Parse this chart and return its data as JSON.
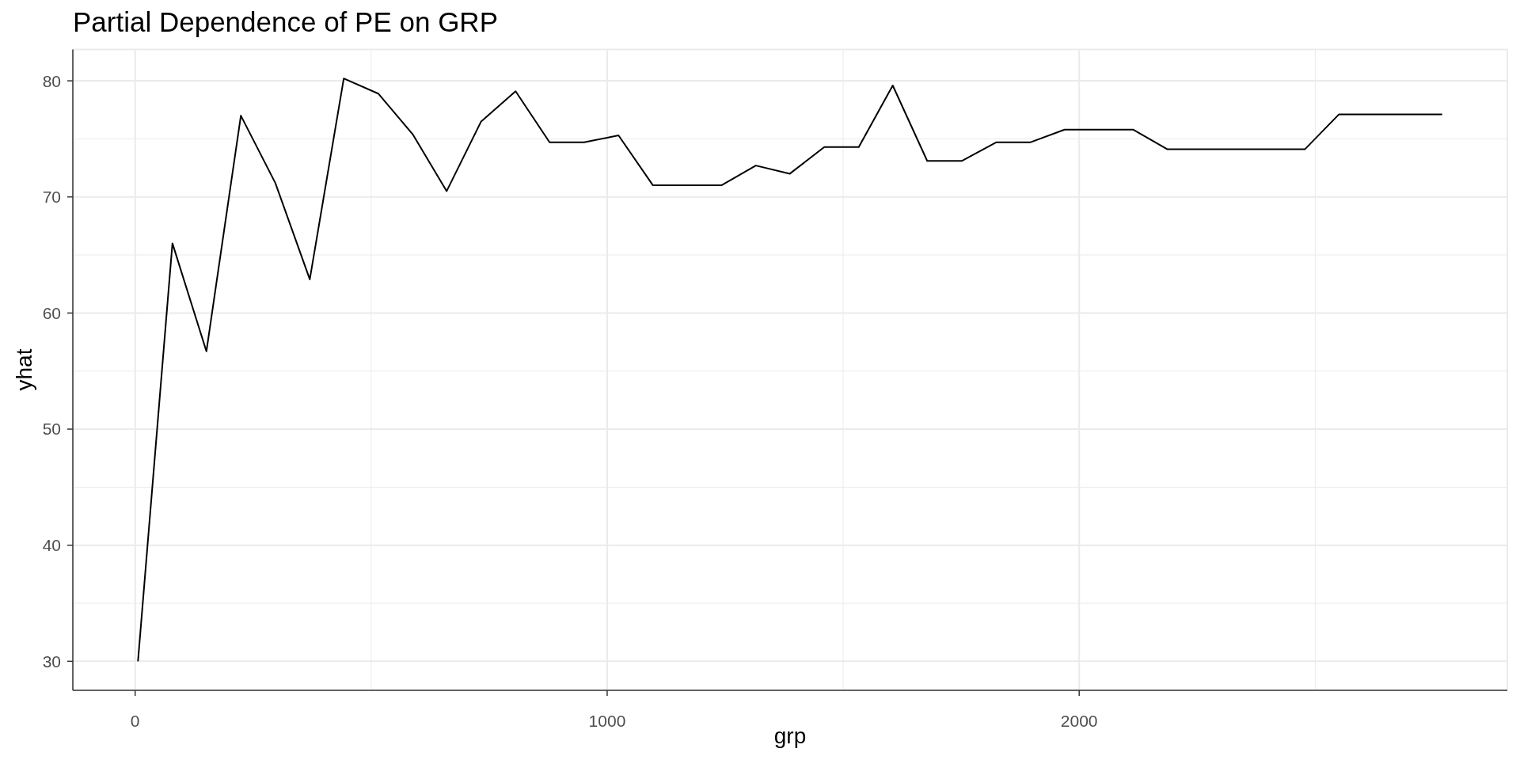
{
  "chart_data": {
    "type": "line",
    "title": "Partial Dependence of PE on GRP",
    "xlabel": "grp",
    "ylabel": "yhat",
    "x": [
      6,
      79,
      151,
      224,
      297,
      370,
      442,
      515,
      588,
      660,
      733,
      806,
      878,
      951,
      1024,
      1097,
      1169,
      1242,
      1315,
      1387,
      1460,
      1533,
      1605,
      1678,
      1751,
      1824,
      1896,
      1969,
      2042,
      2114,
      2187,
      2260,
      2332,
      2405,
      2478,
      2550,
      2623,
      2696,
      2769
    ],
    "values": [
      30.0,
      66.0,
      56.7,
      77.0,
      71.2,
      62.9,
      80.2,
      78.9,
      75.4,
      70.5,
      76.5,
      79.1,
      74.7,
      74.7,
      75.3,
      71.0,
      71.0,
      71.0,
      72.7,
      72.0,
      74.3,
      74.3,
      79.6,
      73.1,
      73.1,
      74.7,
      74.7,
      75.8,
      75.8,
      75.8,
      74.1,
      74.1,
      74.1,
      74.1,
      74.1,
      77.1,
      77.1,
      77.1,
      77.1
    ],
    "color": "#000000",
    "xlim": [
      -132,
      2907
    ],
    "ylim": [
      27.5,
      82.7
    ],
    "xticks": [
      0,
      {
        "value": 500,
        "label": null
      },
      1000,
      {
        "value": 1500,
        "label": null
      },
      2000,
      {
        "value": 2500,
        "label": null
      }
    ],
    "yticks": [
      30,
      {
        "value": 35,
        "label": null
      },
      40,
      {
        "value": 45,
        "label": null
      },
      50,
      {
        "value": 55,
        "label": null
      },
      60,
      {
        "value": 65,
        "label": null
      },
      70,
      {
        "value": 75,
        "label": null
      },
      80
    ],
    "grid": true
  }
}
